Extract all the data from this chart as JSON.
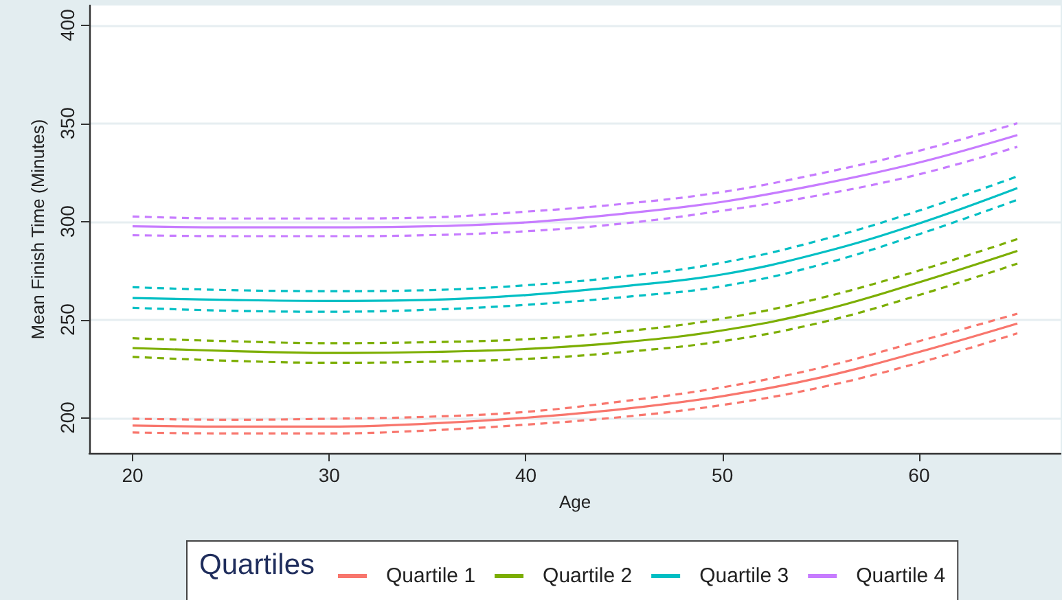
{
  "chart_data": {
    "type": "line",
    "xlabel": "Age",
    "ylabel": "Mean Finish Time (Minutes)",
    "legend_title": "Quartiles",
    "x": [
      20,
      25,
      30,
      35,
      40,
      45,
      50,
      55,
      60,
      65
    ],
    "series": [
      {
        "name": "Quartile 1",
        "color": "#f8766d",
        "values": [
          196,
          195.5,
          195.5,
          197,
          200,
          204.5,
          211,
          220.5,
          233.5,
          248
        ]
      },
      {
        "color": "#f8766d",
        "line_style": "dashed",
        "values": [
          199.5,
          199,
          199.5,
          200.5,
          203,
          208.5,
          215.5,
          225.5,
          239,
          253
        ]
      },
      {
        "color": "#f8766d",
        "line_style": "dashed",
        "values": [
          192.5,
          192,
          192,
          193.5,
          196.5,
          200.5,
          206.5,
          215.5,
          228,
          243
        ]
      },
      {
        "name": "Quartile 2",
        "color": "#7cae00",
        "values": [
          235.5,
          234,
          233,
          233.5,
          235,
          238.5,
          244.5,
          254.5,
          269,
          285
        ]
      },
      {
        "color": "#7cae00",
        "line_style": "dashed",
        "values": [
          240.5,
          239,
          238,
          238.5,
          240,
          244,
          250.5,
          261,
          275,
          291
        ]
      },
      {
        "color": "#7cae00",
        "line_style": "dashed",
        "values": [
          231,
          229,
          228,
          228.5,
          230,
          233.5,
          239,
          248.5,
          262.5,
          278.5
        ]
      },
      {
        "name": "Quartile 3",
        "color": "#00bfc4",
        "values": [
          261,
          260,
          259.5,
          260,
          262.5,
          267,
          273,
          284,
          299,
          317
        ]
      },
      {
        "color": "#00bfc4",
        "line_style": "dashed",
        "values": [
          266.5,
          265,
          264.5,
          265,
          267.5,
          272,
          279,
          290.5,
          305.5,
          323
        ]
      },
      {
        "color": "#00bfc4",
        "line_style": "dashed",
        "values": [
          256,
          254.5,
          254,
          255,
          257.5,
          261.5,
          267,
          278,
          293.5,
          311
        ]
      },
      {
        "name": "Quartile 4",
        "color": "#c77cff",
        "values": [
          297.5,
          297,
          297,
          297.5,
          299.5,
          304,
          310,
          319,
          330,
          344
        ]
      },
      {
        "color": "#c77cff",
        "line_style": "dashed",
        "values": [
          302.5,
          301.5,
          301.5,
          302,
          305,
          309,
          315,
          324.5,
          336,
          350
        ]
      },
      {
        "color": "#c77cff",
        "line_style": "dashed",
        "values": [
          293,
          292.5,
          292.5,
          293,
          295,
          299,
          305.5,
          313.5,
          324,
          338
        ]
      }
    ],
    "xlim": [
      17.8,
      67.2
    ],
    "xticks": [
      20,
      30,
      40,
      50,
      60
    ],
    "ylim": [
      182,
      410
    ],
    "yticks": [
      200,
      250,
      300,
      350,
      400
    ],
    "grid": "y",
    "legend": "bottom",
    "marker": "none",
    "line_style": "solid"
  }
}
